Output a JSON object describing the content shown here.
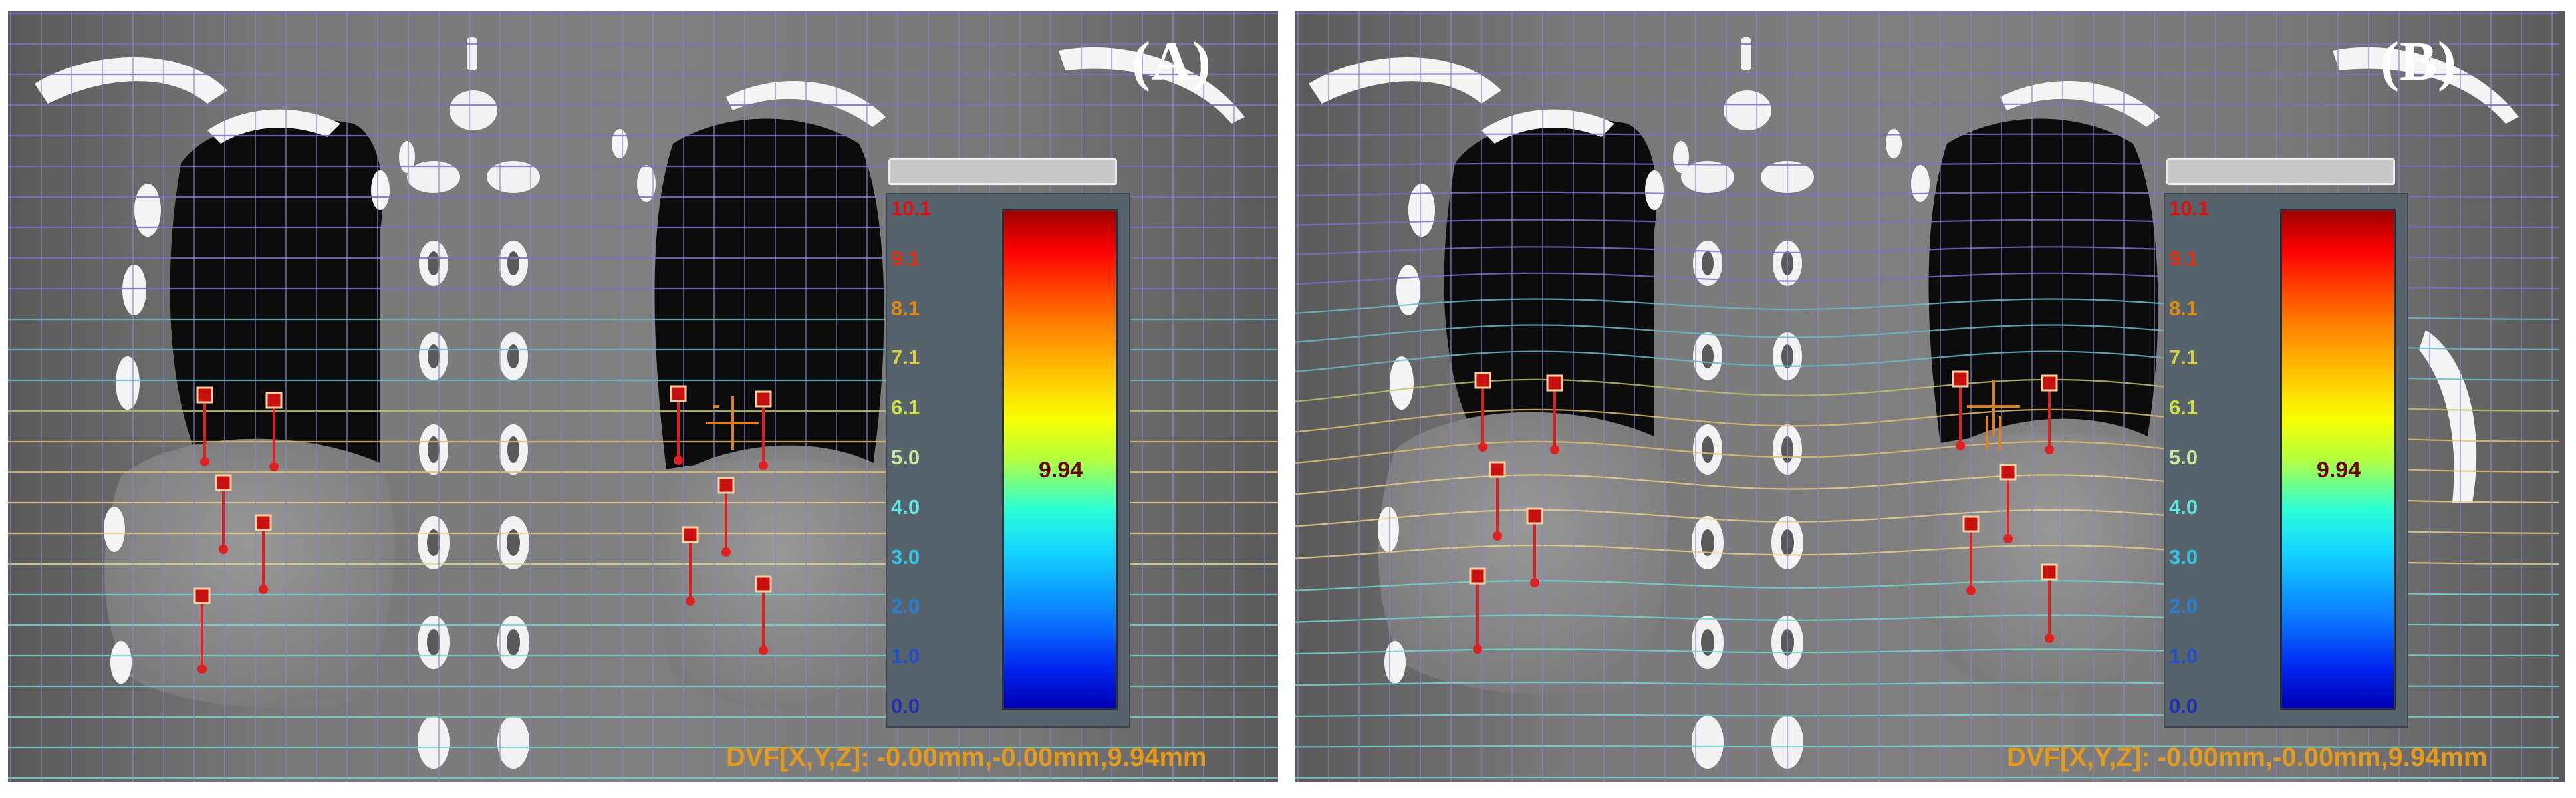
{
  "panels": [
    {
      "id": "A",
      "label": "(A)",
      "grid": "regular",
      "colorbar": {
        "ticks": [
          "10.1",
          "9.1",
          "8.1",
          "7.1",
          "6.1",
          "5.0",
          "4.0",
          "3.0",
          "2.0",
          "1.0",
          "0.0"
        ],
        "tick_colors": [
          "#e01010",
          "#e03010",
          "#e08a10",
          "#d8d040",
          "#d0e040",
          "#c8e8a0",
          "#60e8e0",
          "#30c8e8",
          "#2880d0",
          "#2050c8",
          "#2030b0"
        ],
        "current_value": "9.94"
      },
      "readout": "DVF[X,Y,Z]: -0.00mm,-0.00mm,9.94mm"
    },
    {
      "id": "B",
      "label": "(B)",
      "grid": "deformed",
      "colorbar": {
        "ticks": [
          "10.1",
          "9.1",
          "8.1",
          "7.1",
          "6.1",
          "5.0",
          "4.0",
          "3.0",
          "2.0",
          "1.0",
          "0.0"
        ],
        "tick_colors": [
          "#e01010",
          "#e03010",
          "#e08a10",
          "#d8d040",
          "#d0e040",
          "#c8e8a0",
          "#60e8e0",
          "#30c8e8",
          "#2880d0",
          "#2050c8",
          "#2030b0"
        ],
        "current_value": "9.94"
      },
      "readout": "DVF[X,Y,Z]: -0.00mm,-0.00mm,9.94mm"
    }
  ]
}
